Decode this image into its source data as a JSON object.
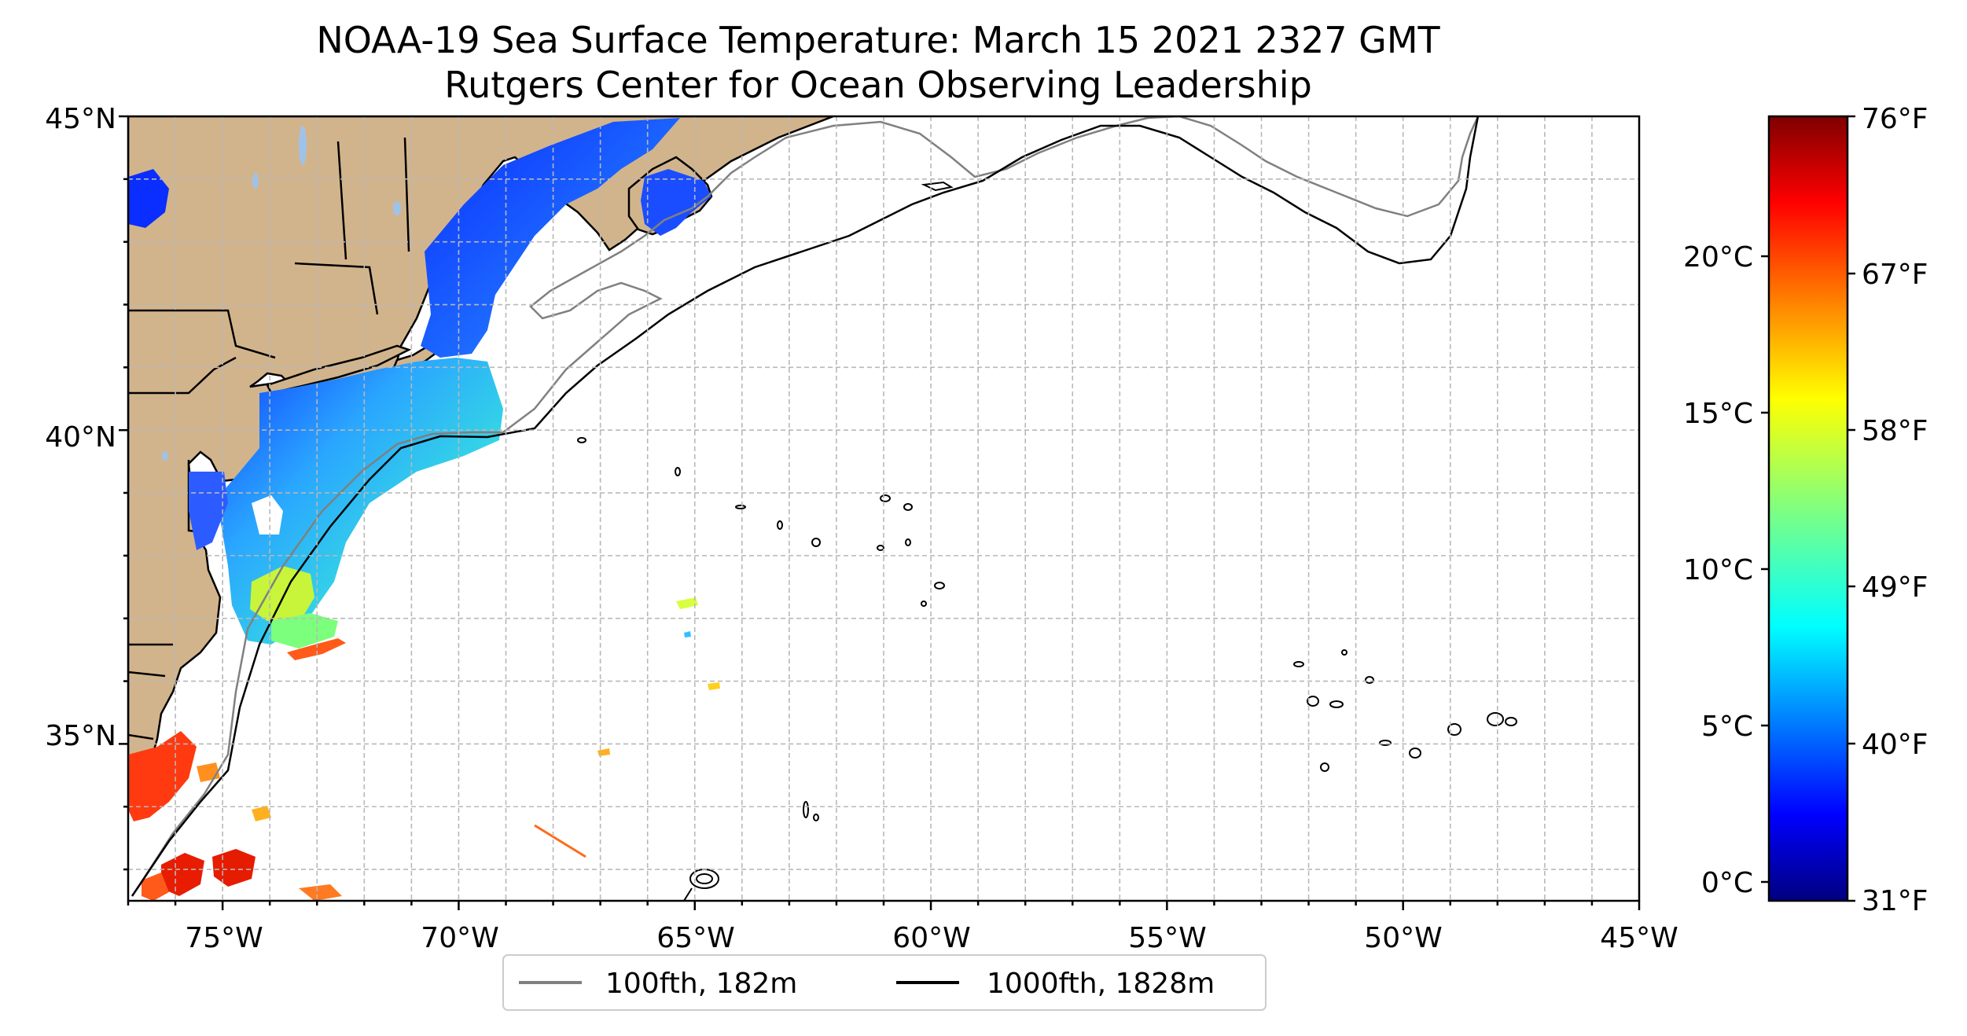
{
  "title": "NOAA-19 Sea Surface Temperature: March 15 2021 2327 GMT",
  "subtitle": "Rutgers Center for Ocean Observing Leadership",
  "map": {
    "lon_range": [
      -77,
      -45
    ],
    "lat_range": [
      32.5,
      45
    ],
    "x_ticks": [
      "75°W",
      "70°W",
      "65°W",
      "60°W",
      "55°W",
      "50°W",
      "45°W"
    ],
    "y_ticks": [
      "35°N",
      "40°N",
      "45°N"
    ],
    "gridlines": true,
    "colors": {
      "land": "#d2b48c",
      "lakes": "#9fc3e8",
      "ocean": "#ffffff",
      "grid": "#b8b8b8",
      "isobath_100": "#808080",
      "isobath_1000": "#000000"
    }
  },
  "legend": {
    "placement": "bottom-center",
    "items": [
      {
        "label": "100fth, 182m",
        "color": "#808080"
      },
      {
        "label": "1000fth, 1828m",
        "color": "#000000"
      }
    ]
  },
  "colorbar": {
    "colormap": "jet",
    "celsius_ticks": [
      "0°C",
      "5°C",
      "10°C",
      "15°C",
      "20°C"
    ],
    "fahrenheit_ticks": [
      "31°F",
      "40°F",
      "49°F",
      "58°F",
      "67°F",
      "76°F"
    ]
  }
}
